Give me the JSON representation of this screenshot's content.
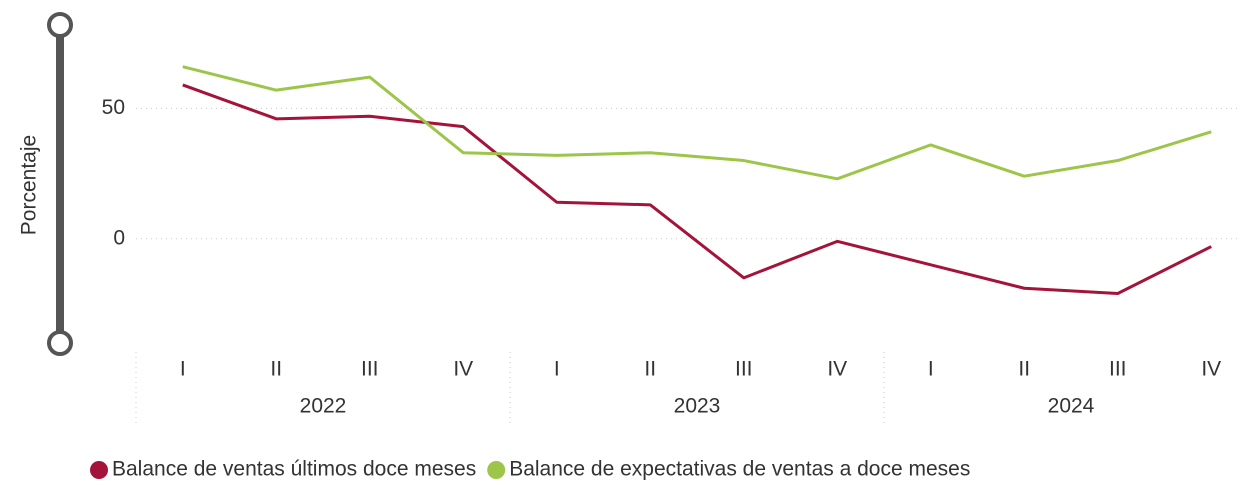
{
  "chart_data": {
    "type": "line",
    "y_axis_label": "Porcentaje",
    "categories": [
      "I",
      "II",
      "III",
      "IV",
      "I",
      "II",
      "III",
      "IV",
      "I",
      "II",
      "III",
      "IV"
    ],
    "category_groups": [
      "2022",
      "2023",
      "2024"
    ],
    "series": [
      {
        "name": "Balance de ventas últimos doce meses",
        "color": "#a4143a",
        "values": [
          59,
          46,
          47,
          43,
          14,
          13,
          -15,
          -1,
          -10,
          -19,
          -21,
          -3
        ]
      },
      {
        "name": "Balance de expectativas de ventas a doce meses",
        "color": "#9dc54a",
        "values": [
          66,
          57,
          62,
          33,
          32,
          33,
          30,
          23,
          36,
          24,
          30,
          41
        ]
      }
    ],
    "ylim": [
      -40,
      82
    ],
    "yticks": [
      0,
      50
    ],
    "grid": true
  }
}
